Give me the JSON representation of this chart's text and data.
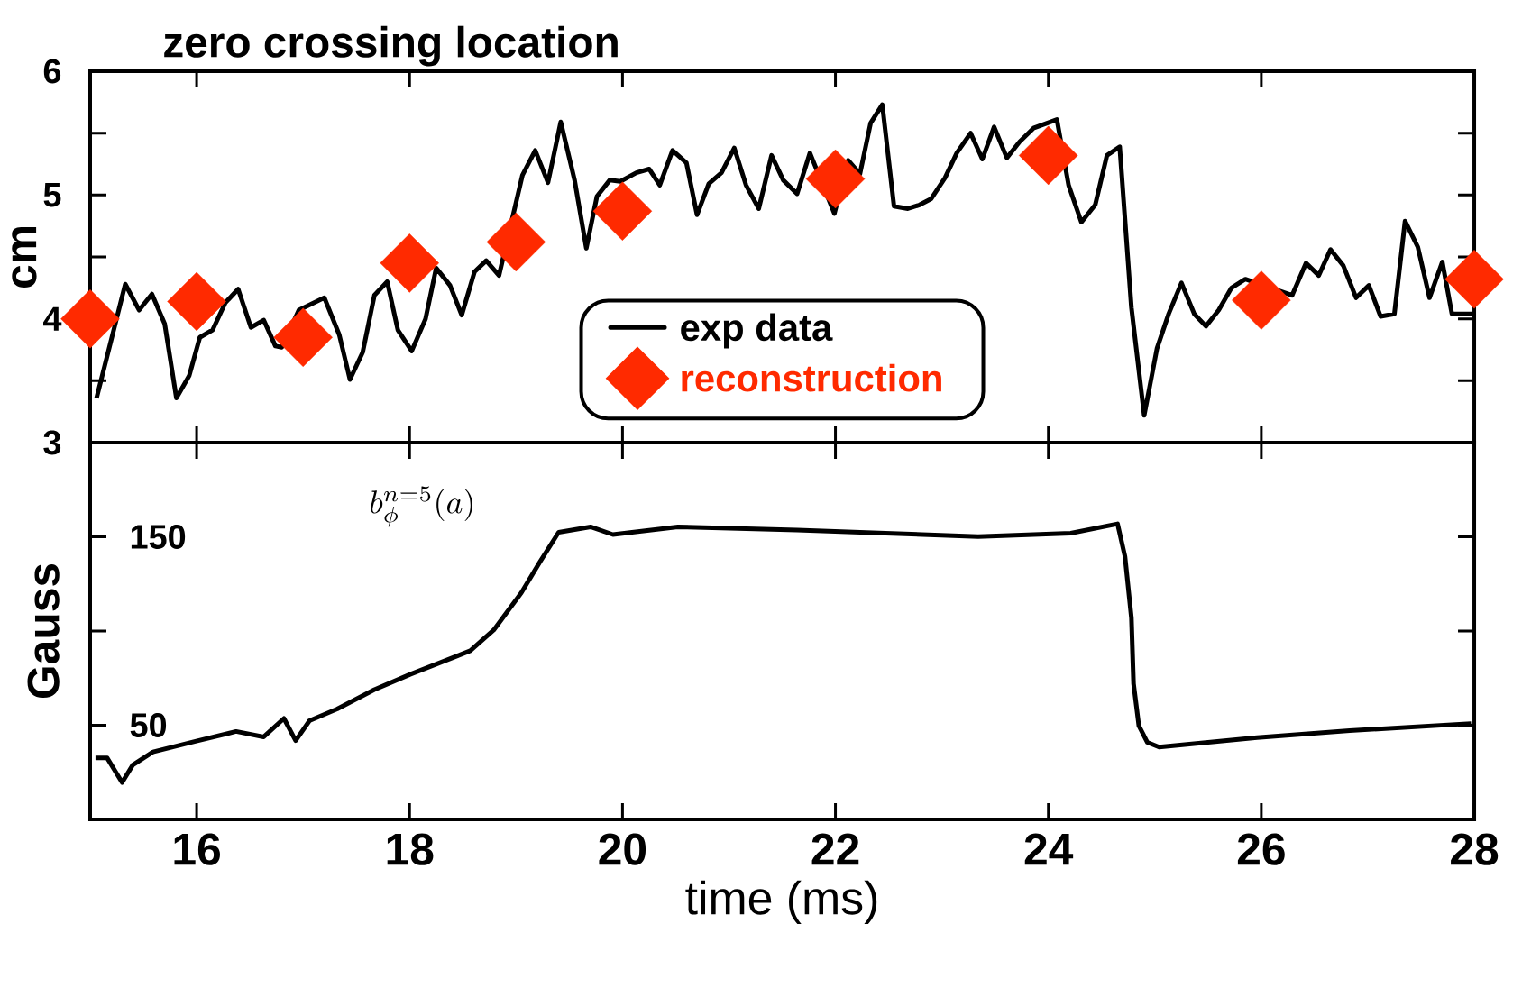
{
  "chart_data": [
    {
      "type": "line",
      "title": "zero crossing location",
      "ylabel": "cm",
      "xlim": [
        15,
        28
      ],
      "ylim": [
        3,
        6
      ],
      "xticks": [
        16,
        18,
        20,
        22,
        24,
        26,
        28
      ],
      "yticks": [
        3,
        4,
        5,
        6
      ],
      "tick_labels": "y",
      "legend": "bottom",
      "series": [
        {
          "name": "exp data",
          "type": "line",
          "color": "#000000",
          "line_style": "solid",
          "x": [
            15.06,
            15.33,
            15.46,
            15.58,
            15.7,
            15.81,
            15.93,
            16.03,
            16.15,
            16.27,
            16.39,
            16.51,
            16.63,
            16.74,
            16.8,
            16.96,
            17.08,
            17.2,
            17.34,
            17.44,
            17.56,
            17.67,
            17.79,
            17.89,
            18.02,
            18.15,
            18.25,
            18.38,
            18.49,
            18.61,
            18.72,
            18.84,
            18.96,
            19.06,
            19.18,
            19.3,
            19.42,
            19.55,
            19.66,
            19.76,
            19.88,
            19.98,
            20.13,
            20.25,
            20.35,
            20.47,
            20.6,
            20.7,
            20.81,
            20.93,
            21.05,
            21.16,
            21.28,
            21.4,
            21.51,
            21.64,
            21.76,
            21.86,
            21.99,
            22.12,
            22.23,
            22.33,
            22.44,
            22.55,
            22.68,
            22.79,
            22.9,
            23.03,
            23.14,
            23.27,
            23.38,
            23.49,
            23.61,
            23.73,
            23.86,
            24.08,
            24.19,
            24.31,
            24.44,
            24.55,
            24.67,
            24.78,
            24.9,
            25.02,
            25.13,
            25.25,
            25.37,
            25.48,
            25.6,
            25.72,
            25.85,
            26.06,
            26.16,
            26.29,
            26.42,
            26.54,
            26.65,
            26.77,
            26.89,
            27.01,
            27.12,
            27.25,
            27.35,
            27.47,
            27.58,
            27.7,
            27.79,
            28.0
          ],
          "values": [
            3.36,
            4.28,
            4.07,
            4.2,
            3.96,
            3.36,
            3.54,
            3.85,
            3.91,
            4.13,
            4.24,
            3.93,
            3.99,
            3.78,
            3.77,
            4.07,
            null,
            4.17,
            3.87,
            3.51,
            3.73,
            4.19,
            4.3,
            3.91,
            3.74,
            4.0,
            4.41,
            4.27,
            4.03,
            4.38,
            4.47,
            4.35,
            null,
            5.16,
            5.36,
            5.1,
            5.59,
            5.12,
            4.57,
            4.99,
            5.12,
            5.11,
            5.18,
            5.21,
            5.08,
            5.36,
            5.26,
            4.84,
            5.09,
            5.18,
            5.38,
            5.08,
            4.89,
            5.32,
            5.12,
            5.01,
            5.34,
            null,
            4.85,
            5.28,
            5.17,
            5.58,
            5.73,
            4.91,
            4.89,
            4.92,
            4.97,
            5.14,
            5.34,
            5.5,
            5.29,
            5.55,
            5.3,
            5.43,
            5.54,
            5.61,
            5.08,
            4.78,
            4.92,
            5.32,
            5.39,
            4.09,
            3.22,
            3.76,
            4.04,
            4.29,
            4.04,
            3.94,
            4.07,
            4.25,
            4.32,
            null,
            null,
            4.19,
            4.45,
            4.35,
            4.56,
            4.43,
            4.17,
            4.27,
            4.02,
            4.04,
            4.79,
            4.58,
            4.17,
            4.46,
            4.04,
            4.04
          ]
        },
        {
          "name": "reconstruction",
          "type": "scatter",
          "marker": "diamond",
          "color": "#ff2a00",
          "x": [
            15,
            16,
            17,
            18,
            19,
            20,
            22,
            24,
            26,
            28
          ],
          "values": [
            4.0,
            4.14,
            3.85,
            4.45,
            4.62,
            4.87,
            5.13,
            5.32,
            4.15,
            4.32
          ]
        }
      ]
    },
    {
      "type": "line",
      "xlabel": "time (ms)",
      "ylabel": "Gauss",
      "xlim": [
        15,
        28
      ],
      "ylim": [
        0,
        200
      ],
      "xticks": [
        16,
        18,
        20,
        22,
        24,
        26,
        28
      ],
      "yticks": [
        50,
        150
      ],
      "annotations": [
        "b_{\\phi}^{n=5}(a)"
      ],
      "series": [
        {
          "color": "#000000",
          "x": [
            15.05,
            15.16,
            15.3,
            15.4,
            15.59,
            15.98,
            16.37,
            16.63,
            16.82,
            16.93,
            17.06,
            17.32,
            17.67,
            18.01,
            18.57,
            18.79,
            19.05,
            19.22,
            19.4,
            19.7,
            19.91,
            20.52,
            21.64,
            22.47,
            23.34,
            24.21,
            24.65,
            24.72,
            24.78,
            24.8,
            24.85,
            24.93,
            25.04,
            25.96,
            26.83,
            27.97
          ],
          "values": [
            32.6,
            32.6,
            19.6,
            28.9,
            35.8,
            41.3,
            46.7,
            43.8,
            53.6,
            41.8,
            52.4,
            58.6,
            68.9,
            77.1,
            89.5,
            100.5,
            120.3,
            136.3,
            152.4,
            155.3,
            151.2,
            155.3,
            153.6,
            151.9,
            150.1,
            151.9,
            156.9,
            139.4,
            107.0,
            72.1,
            49.7,
            40.9,
            38.4,
            43.4,
            47.1,
            50.9
          ]
        }
      ]
    }
  ]
}
